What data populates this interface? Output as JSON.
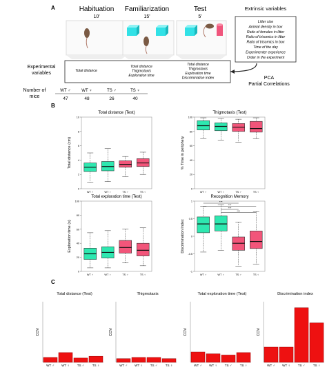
{
  "panelA": {
    "label": "A",
    "stages": [
      {
        "name": "Habituation",
        "time": "10'"
      },
      {
        "name": "Familiarization",
        "time": "15'"
      },
      {
        "name": "Test",
        "time": "5'"
      }
    ],
    "extrinsic_title": "Extrinsic variables",
    "extrinsic_items": [
      "Litter size",
      "Animal density in box",
      "Ratio of females in litter",
      "Ratio of trisomics in litter",
      "Ratio of trisomics in box",
      "Time of the day",
      "Experimenter experience",
      "Order in the experiment"
    ],
    "experimental_label": [
      "Experimental",
      "variables"
    ],
    "exp_col1": [
      "Total distance"
    ],
    "exp_col2": [
      "Total distance",
      "Thigmotaxis",
      "Exploration time"
    ],
    "exp_col3": [
      "Total distance",
      "Thigmotaxis",
      "Exploration time",
      "Discrimination index"
    ],
    "pca_label": [
      "PCA",
      "Partial Correlations"
    ],
    "mice_label": [
      "Number of",
      "mice"
    ],
    "groups": [
      "WT ♂",
      "WT ♀",
      "TS ♂",
      "TS ♀"
    ],
    "counts": [
      "47",
      "48",
      "26",
      "40"
    ]
  },
  "panelB_label": "B",
  "panelC_label": "C",
  "colors": {
    "wt": "#2ee8b0",
    "ts": "#f2557a",
    "bar": "#ee1111"
  },
  "chart_data": [
    {
      "type": "box",
      "title": "Total distance (Test)",
      "ylabel": "Total distance (cm)",
      "categories": [
        "WT ♂",
        "WT ♀",
        "TS ♂",
        "TS ♀"
      ],
      "ylim": [
        0,
        10
      ],
      "boxes": [
        {
          "min": 0.9,
          "q1": 2.4,
          "median": 3.0,
          "q3": 3.6,
          "max": 5.0
        },
        {
          "min": 1.0,
          "q1": 2.5,
          "median": 3.1,
          "q3": 3.8,
          "max": 5.6
        },
        {
          "min": 1.7,
          "q1": 3.0,
          "median": 3.4,
          "q3": 3.9,
          "max": 4.5
        },
        {
          "min": 2.0,
          "q1": 3.1,
          "median": 3.6,
          "q3": 4.2,
          "max": 5.1
        }
      ]
    },
    {
      "type": "box",
      "title": "Thigmotaxis (Test)",
      "ylabel": "% Time in periphery",
      "categories": [
        "WT ♂",
        "WT ♀",
        "TS ♂",
        "TS ♀"
      ],
      "ylim": [
        0,
        100
      ],
      "boxes": [
        {
          "min": 70,
          "q1": 82,
          "median": 88,
          "q3": 95,
          "max": 99
        },
        {
          "min": 68,
          "q1": 81,
          "median": 87,
          "q3": 92,
          "max": 98
        },
        {
          "min": 65,
          "q1": 80,
          "median": 86,
          "q3": 91,
          "max": 97
        },
        {
          "min": 70,
          "q1": 79,
          "median": 84,
          "q3": 94,
          "max": 99
        }
      ]
    },
    {
      "type": "box",
      "title": "Total exploration time (Test)",
      "ylabel": "Exploration time (s)",
      "categories": [
        "WT ♂",
        "WT ♀",
        "TS ♂",
        "TS ♀"
      ],
      "ylim": [
        0,
        100
      ],
      "boxes": [
        {
          "min": 5,
          "q1": 17,
          "median": 25,
          "q3": 33,
          "max": 55
        },
        {
          "min": 5,
          "q1": 19,
          "median": 27,
          "q3": 35,
          "max": 58
        },
        {
          "min": 12,
          "q1": 26,
          "median": 34,
          "q3": 44,
          "max": 60
        },
        {
          "min": 8,
          "q1": 22,
          "median": 30,
          "q3": 40,
          "max": 62
        }
      ]
    },
    {
      "type": "box",
      "title": "Recognition Memory",
      "ylabel": "Discrimination Index",
      "categories": [
        "WT ♂",
        "WT ♀",
        "TS ♂",
        "TS ♀"
      ],
      "ylim": [
        -1,
        1
      ],
      "boxes": [
        {
          "min": -0.45,
          "q1": 0.1,
          "median": 0.35,
          "q3": 0.55,
          "max": 0.85
        },
        {
          "min": -0.4,
          "q1": 0.15,
          "median": 0.35,
          "q3": 0.58,
          "max": 0.9
        },
        {
          "min": -0.85,
          "q1": -0.4,
          "median": -0.2,
          "q3": -0.02,
          "max": 0.4
        },
        {
          "min": -0.8,
          "q1": -0.35,
          "median": -0.15,
          "q3": 0.15,
          "max": 0.7
        }
      ],
      "annotations": [
        "***",
        "***",
        "***",
        "***"
      ]
    },
    {
      "type": "bar",
      "title": "Total distance (Test)",
      "ylabel": "COV",
      "categories": [
        "WT ♂",
        "WT ♀",
        "TS ♂",
        "TS ♀"
      ],
      "values": [
        0.08,
        0.16,
        0.07,
        0.1
      ],
      "ylim": [
        0,
        1
      ]
    },
    {
      "type": "bar",
      "title": "Thigmotaxis",
      "ylabel": "COV",
      "categories": [
        "WT ♂",
        "WT ♀",
        "TS ♂",
        "TS ♀"
      ],
      "values": [
        0.06,
        0.08,
        0.08,
        0.06
      ],
      "ylim": [
        0,
        1
      ]
    },
    {
      "type": "bar",
      "title": "Total exploration time (Test)",
      "ylabel": "COV",
      "categories": [
        "WT ♂",
        "WT ♀",
        "TS ♂",
        "TS ♀"
      ],
      "values": [
        0.17,
        0.14,
        0.12,
        0.16
      ],
      "ylim": [
        0,
        1
      ]
    },
    {
      "type": "bar",
      "title": "Discrimination index",
      "ylabel": "COV",
      "categories": [
        "WT ♂",
        "WT ♀",
        "TS ♂",
        "TS ♀"
      ],
      "values": [
        0.25,
        0.25,
        0.9,
        0.65
      ],
      "ylim": [
        0,
        1
      ]
    }
  ]
}
